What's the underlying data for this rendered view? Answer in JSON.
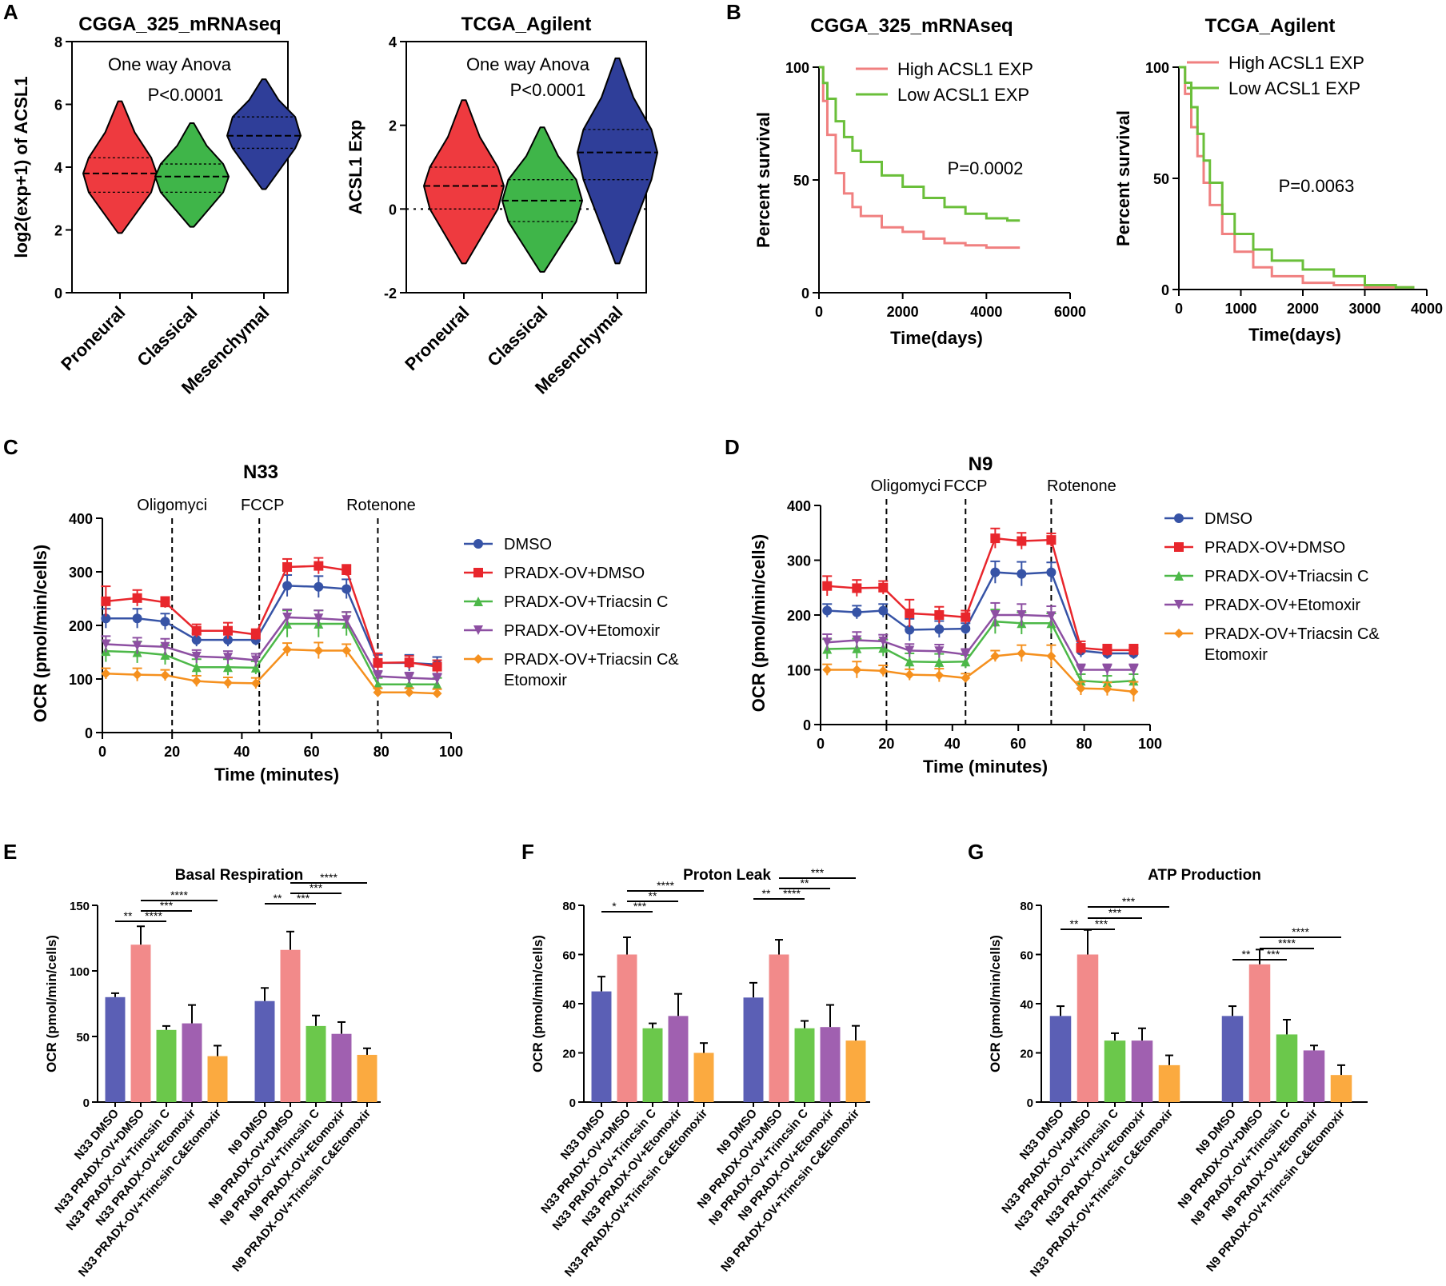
{
  "panel_labels": {
    "A": "A",
    "B": "B",
    "C": "C",
    "D": "D",
    "E": "E",
    "F": "F",
    "G": "G"
  },
  "colors": {
    "red": "#ee3a3f",
    "green": "#3fb549",
    "blue": "#2f3e99",
    "pink": "#f08080",
    "lgreen": "#6abf3a",
    "dmso_line": "#3653a6",
    "ov_line": "#e8262c",
    "tri_line": "#4cb848",
    "eto_line": "#8d4fa2",
    "both_line": "#f5901e",
    "bar_blue": "#5b5fb5",
    "bar_pink": "#f28a8a",
    "bar_green": "#6bc84b",
    "bar_purple": "#a060b0",
    "bar_orange": "#fbaa40"
  },
  "chart_data": [
    {
      "id": "A1",
      "type": "violin",
      "title": "CGGA_325_mRNAseq",
      "ylabel": "log2(exp+1) of ACSL1",
      "ylim": [
        0,
        8
      ],
      "yticks": [
        "0",
        "2",
        "4",
        "6",
        "8"
      ],
      "annotations": [
        "One way Anova",
        "P<0.0001"
      ],
      "categories": [
        "Proneural",
        "Classical",
        "Mesenchymal"
      ],
      "violins": [
        {
          "min": 1.9,
          "q1": 3.2,
          "median": 3.8,
          "q3": 4.3,
          "max": 6.1
        },
        {
          "min": 2.1,
          "q1": 3.2,
          "median": 3.7,
          "q3": 4.1,
          "max": 5.4
        },
        {
          "min": 3.3,
          "q1": 4.6,
          "median": 5.0,
          "q3": 5.6,
          "max": 6.8
        }
      ]
    },
    {
      "id": "A2",
      "type": "violin",
      "title": "TCGA_Agilent",
      "ylabel": "ACSL1 Exp",
      "ylim": [
        -2,
        4
      ],
      "yticks": [
        "-2",
        "0",
        "2",
        "4"
      ],
      "annotations": [
        "One way Anova",
        "P<0.0001"
      ],
      "categories": [
        "Proneural",
        "Classical",
        "Mesenchymal"
      ],
      "violins": [
        {
          "min": -1.3,
          "q1": 0.0,
          "median": 0.55,
          "q3": 1.0,
          "max": 2.6
        },
        {
          "min": -1.5,
          "q1": -0.3,
          "median": 0.2,
          "q3": 0.7,
          "max": 1.95
        },
        {
          "min": -1.3,
          "q1": 0.7,
          "median": 1.35,
          "q3": 1.9,
          "max": 3.6
        }
      ]
    },
    {
      "id": "B1",
      "type": "line",
      "title": "CGGA_325_mRNAseq",
      "xlabel": "Time(days)",
      "ylabel": "Percent survival",
      "xlim": [
        0,
        6000
      ],
      "ylim": [
        0,
        100
      ],
      "xticks": [
        "0",
        "2000",
        "4000",
        "6000"
      ],
      "yticks": [
        "0",
        "50",
        "100"
      ],
      "annotation": "P=0.0002",
      "series": [
        {
          "name": "High ACSL1 EXP",
          "x": [
            0,
            100,
            200,
            400,
            600,
            800,
            1000,
            1500,
            2000,
            2500,
            3000,
            3500,
            4000,
            4500,
            4800
          ],
          "y": [
            100,
            85,
            70,
            53,
            44,
            38,
            34,
            29,
            27,
            24,
            22,
            21,
            20,
            20,
            20
          ]
        },
        {
          "name": "Low ACSL1 EXP",
          "x": [
            0,
            100,
            200,
            400,
            600,
            800,
            1000,
            1500,
            2000,
            2500,
            3000,
            3500,
            4000,
            4500,
            4800
          ],
          "y": [
            100,
            93,
            86,
            76,
            69,
            63,
            58,
            52,
            47,
            42,
            38,
            35,
            33,
            32,
            32
          ]
        }
      ]
    },
    {
      "id": "B2",
      "type": "line",
      "title": "TCGA_Agilent",
      "xlabel": "Time(days)",
      "ylabel": "Percent survival",
      "xlim": [
        0,
        4000
      ],
      "ylim": [
        0,
        100
      ],
      "xticks": [
        "0",
        "1000",
        "2000",
        "3000",
        "4000"
      ],
      "yticks": [
        "0",
        "50",
        "100"
      ],
      "annotation": "P=0.0063",
      "series": [
        {
          "name": "High ACSL1 EXP",
          "x": [
            0,
            100,
            200,
            300,
            400,
            500,
            700,
            900,
            1200,
            1500,
            2000,
            2500,
            3000,
            3500,
            3800
          ],
          "y": [
            100,
            88,
            73,
            60,
            48,
            38,
            25,
            17,
            10,
            6,
            3,
            2,
            1,
            1,
            1
          ]
        },
        {
          "name": "Low ACSL1 EXP",
          "x": [
            0,
            100,
            200,
            300,
            400,
            500,
            700,
            900,
            1200,
            1500,
            2000,
            2500,
            3000,
            3500,
            3800
          ],
          "y": [
            100,
            93,
            82,
            70,
            58,
            48,
            34,
            25,
            18,
            13,
            9,
            6,
            2,
            1,
            1
          ]
        }
      ]
    },
    {
      "id": "C",
      "type": "line",
      "title": "N33",
      "xlabel": "Time (minutes)",
      "ylabel": "OCR (pmol/min/cells)",
      "xlim": [
        0,
        100
      ],
      "ylim": [
        0,
        400
      ],
      "xticks": [
        "0",
        "20",
        "40",
        "60",
        "80",
        "100"
      ],
      "yticks": [
        "0",
        "100",
        "200",
        "300",
        "400"
      ],
      "vlines": [
        {
          "x": 20,
          "label": "Oligomyci"
        },
        {
          "x": 45,
          "label": "FCCP"
        },
        {
          "x": 79,
          "label": "Rotenone"
        }
      ],
      "x": [
        1,
        10,
        18,
        27,
        36,
        44,
        53,
        62,
        70,
        79,
        88,
        96
      ],
      "series": [
        {
          "name": "DMSO",
          "marker": "circle",
          "y": [
            213,
            213,
            207,
            173,
            173,
            173,
            274,
            272,
            268,
            130,
            130,
            127
          ],
          "err": [
            18,
            18,
            15,
            12,
            12,
            10,
            20,
            20,
            18,
            15,
            15,
            14
          ]
        },
        {
          "name": "PRADX-OV+DMSO",
          "marker": "square",
          "y": [
            245,
            251,
            243,
            190,
            190,
            183,
            309,
            311,
            303,
            130,
            131,
            123
          ],
          "err": [
            28,
            15,
            10,
            12,
            15,
            10,
            15,
            15,
            10,
            18,
            12,
            12
          ]
        },
        {
          "name": "PRADX-OV+Triacsin C",
          "marker": "triangle",
          "y": [
            152,
            150,
            145,
            122,
            122,
            121,
            203,
            203,
            203,
            90,
            90,
            90
          ],
          "err": [
            20,
            20,
            18,
            15,
            15,
            12,
            25,
            25,
            22,
            12,
            12,
            12
          ]
        },
        {
          "name": "PRADX-OV+Etomoxir",
          "marker": "triangle-down",
          "y": [
            165,
            162,
            160,
            142,
            140,
            135,
            215,
            213,
            210,
            105,
            102,
            100
          ],
          "err": [
            15,
            15,
            15,
            12,
            12,
            12,
            15,
            15,
            15,
            10,
            10,
            10
          ]
        },
        {
          "name": "PRADX-OV+Triacsin C& Etomoxir",
          "marker": "diamond",
          "y": [
            110,
            108,
            107,
            96,
            93,
            92,
            155,
            153,
            153,
            75,
            75,
            73
          ],
          "err": [
            10,
            12,
            10,
            10,
            10,
            10,
            12,
            15,
            12,
            8,
            8,
            8
          ]
        }
      ]
    },
    {
      "id": "D",
      "type": "line",
      "title": "N9",
      "xlabel": "Time (minutes)",
      "ylabel": "OCR (pmol/min/cells)",
      "xlim": [
        0,
        100
      ],
      "ylim": [
        0,
        400
      ],
      "xticks": [
        "0",
        "20",
        "40",
        "60",
        "80",
        "100"
      ],
      "yticks": [
        "0",
        "100",
        "200",
        "300",
        "400"
      ],
      "vlines": [
        {
          "x": 20,
          "label": "Oligomyci"
        },
        {
          "x": 44,
          "label": "FCCP"
        },
        {
          "x": 70,
          "label": "Rotenone"
        }
      ],
      "x": [
        2,
        11,
        19,
        27,
        36,
        44,
        53,
        61,
        70,
        79,
        87,
        95
      ],
      "series": [
        {
          "name": "DMSO",
          "marker": "circle",
          "y": [
            208,
            205,
            208,
            173,
            174,
            175,
            278,
            275,
            278,
            135,
            130,
            130
          ],
          "err": [
            12,
            12,
            12,
            20,
            15,
            10,
            20,
            22,
            18,
            12,
            10,
            10
          ]
        },
        {
          "name": "PRADX-OV+DMSO",
          "marker": "square",
          "y": [
            253,
            249,
            250,
            203,
            200,
            196,
            340,
            335,
            337,
            140,
            136,
            136
          ],
          "err": [
            18,
            15,
            12,
            25,
            15,
            12,
            18,
            15,
            12,
            12,
            10,
            10
          ]
        },
        {
          "name": "PRADX-OV+Triacsin C",
          "marker": "triangle",
          "y": [
            138,
            139,
            140,
            115,
            114,
            115,
            188,
            185,
            185,
            80,
            77,
            80
          ],
          "err": [
            18,
            18,
            15,
            15,
            15,
            12,
            22,
            20,
            18,
            12,
            12,
            12
          ]
        },
        {
          "name": "PRADX-OV+Etomoxir",
          "marker": "triangle-down",
          "y": [
            150,
            154,
            152,
            135,
            134,
            128,
            200,
            200,
            198,
            100,
            100,
            100
          ],
          "err": [
            15,
            15,
            12,
            12,
            12,
            10,
            22,
            20,
            18,
            10,
            10,
            10
          ]
        },
        {
          "name": "PRADX-OV+Triacsin C& Etomoxir",
          "marker": "diamond",
          "y": [
            100,
            100,
            98,
            91,
            90,
            85,
            125,
            130,
            125,
            66,
            65,
            60
          ],
          "err": [
            10,
            15,
            10,
            10,
            12,
            8,
            10,
            15,
            20,
            12,
            12,
            18
          ]
        }
      ]
    },
    {
      "id": "E",
      "type": "bar",
      "title": "Basal Respiration",
      "ylabel": "OCR (pmol/min/cells)",
      "ylim": [
        0,
        150
      ],
      "yticks": [
        "0",
        "50",
        "100",
        "150"
      ],
      "categories": [
        "N33 DMSO",
        "N33 PRADX-OV+DMSO",
        "N33 PRADX-OV+Trincsin C",
        "N33 PRADX-OV+Etomoxir",
        "N33 PRADX-OV+Trincsin C&Etomoxir",
        "N9 DMSO",
        "N9 PRADX-OV+DMSO",
        "N9 PRADX-OV+Trincsin C",
        "N9 PRADX-OV+Etomoxir",
        "N9 PRADX-OV+Trincsin C&Etomoxir"
      ],
      "values": [
        80,
        120,
        55,
        60,
        35,
        77,
        116,
        58,
        52,
        36
      ],
      "errors": [
        3,
        14,
        3,
        14,
        8,
        10,
        14,
        8,
        9,
        5
      ],
      "sig": [
        {
          "from": 0,
          "to": 1,
          "label": "**"
        },
        {
          "from": 1,
          "to": 2,
          "label": "****"
        },
        {
          "from": 1,
          "to": 3,
          "label": "***"
        },
        {
          "from": 1,
          "to": 4,
          "label": "****"
        },
        {
          "from": 5,
          "to": 6,
          "label": "**"
        },
        {
          "from": 6,
          "to": 7,
          "label": "***"
        },
        {
          "from": 6,
          "to": 8,
          "label": "***"
        },
        {
          "from": 6,
          "to": 9,
          "label": "****"
        }
      ]
    },
    {
      "id": "F",
      "type": "bar",
      "title": "Proton Leak",
      "ylabel": "OCR (pmol/min/cells)",
      "ylim": [
        0,
        80
      ],
      "yticks": [
        "0",
        "20",
        "40",
        "60",
        "80"
      ],
      "categories": [
        "N33 DMSO",
        "N33 PRADX-OV+DMSO",
        "N33 PRADX-OV+Trincsin C",
        "N33 PRADX-OV+Etomoxir",
        "N33 PRADX-OV+Trincsin C&Etomoxir",
        "N9 DMSO",
        "N9 PRADX-OV+DMSO",
        "N9 PRADX-OV+Trincsin C",
        "N9 PRADX-OV+Etomoxir",
        "N9 PRADX-OV+Trincsin C&Etomoxir"
      ],
      "values": [
        45,
        60,
        30,
        35,
        20,
        42.5,
        60,
        30,
        30.5,
        25
      ],
      "errors": [
        6,
        7,
        2,
        9,
        4,
        6,
        6,
        3,
        9,
        6
      ],
      "sig": [
        {
          "from": 0,
          "to": 1,
          "label": "*"
        },
        {
          "from": 1,
          "to": 2,
          "label": "***"
        },
        {
          "from": 1,
          "to": 3,
          "label": "**"
        },
        {
          "from": 1,
          "to": 4,
          "label": "****"
        },
        {
          "from": 5,
          "to": 6,
          "label": "**"
        },
        {
          "from": 6,
          "to": 7,
          "label": "****"
        },
        {
          "from": 6,
          "to": 8,
          "label": "**"
        },
        {
          "from": 6,
          "to": 9,
          "label": "***"
        }
      ]
    },
    {
      "id": "G",
      "type": "bar",
      "title": "ATP Production",
      "ylabel": "OCR (pmol/min/cells)",
      "ylim": [
        0,
        80
      ],
      "yticks": [
        "0",
        "20",
        "40",
        "60",
        "80"
      ],
      "categories": [
        "N33 DMSO",
        "N33 PRADX-OV+DMSO",
        "N33 PRADX-OV+Trincsin C",
        "N33 PRADX-OV+Etomoxir",
        "N33 PRADX-OV+Trincsin C&Etomoxir",
        "N9 DMSO",
        "N9 PRADX-OV+DMSO",
        "N9 PRADX-OV+Trincsin C",
        "N9 PRADX-OV+Etomoxir",
        "N9 PRADX-OV+Trincsin C&Etomoxir"
      ],
      "values": [
        35,
        60,
        25,
        25,
        15,
        35,
        56,
        27.5,
        21,
        11
      ],
      "errors": [
        4,
        10,
        3,
        5,
        4,
        4,
        6,
        6,
        2,
        4
      ],
      "sig": [
        {
          "from": 0,
          "to": 1,
          "label": "**"
        },
        {
          "from": 1,
          "to": 2,
          "label": "***"
        },
        {
          "from": 1,
          "to": 3,
          "label": "***"
        },
        {
          "from": 1,
          "to": 4,
          "label": "***"
        },
        {
          "from": 5,
          "to": 6,
          "label": "**"
        },
        {
          "from": 6,
          "to": 7,
          "label": "***"
        },
        {
          "from": 6,
          "to": 8,
          "label": "****"
        },
        {
          "from": 6,
          "to": 9,
          "label": "****"
        }
      ]
    }
  ]
}
